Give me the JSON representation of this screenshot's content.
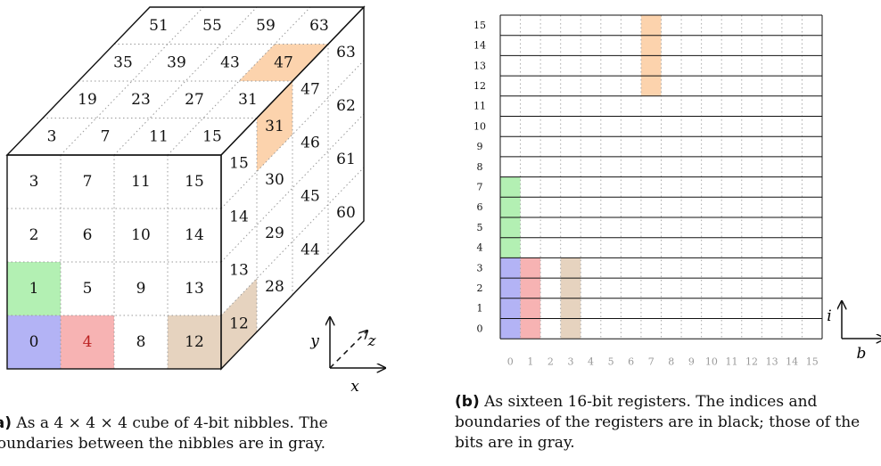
{
  "cube": {
    "front_labels": [
      [
        "3",
        "7",
        "11",
        "15"
      ],
      [
        "2",
        "6",
        "10",
        "14"
      ],
      [
        "1",
        "5",
        "9",
        "13"
      ],
      [
        "0",
        "4",
        "8",
        "12"
      ]
    ],
    "top_rows": [
      [
        "51",
        "55",
        "59",
        "63"
      ],
      [
        "35",
        "39",
        "43",
        "47"
      ],
      [
        "19",
        "23",
        "27",
        "31"
      ],
      [
        "3",
        "7",
        "11",
        "15"
      ]
    ],
    "right_cols": [
      [
        "15",
        "14",
        "13",
        "12"
      ],
      [
        "31",
        "30",
        "29",
        "28"
      ],
      [
        "47",
        "46",
        "45",
        "44"
      ],
      [
        "63",
        "62",
        "61",
        "60"
      ]
    ],
    "colors": {
      "blue": "#b3b3f5",
      "green": "#b3f0b3",
      "red": "#f7b3b3",
      "tan": "#e6d3bf",
      "orange": "#fcd3ad"
    },
    "axes": {
      "x": "x",
      "y": "y",
      "z": "z"
    },
    "caption_left": "(a)",
    "caption": "As a 4 × 4 × 4 cube of 4-bit nibbles. The boundaries between the nibbles are in gray."
  },
  "registers": {
    "row_labels": [
      "0",
      "1",
      "2",
      "3",
      "4",
      "5",
      "6",
      "7",
      "8",
      "9",
      "10",
      "11",
      "12",
      "13",
      "14",
      "15"
    ],
    "col_labels": [
      "0",
      "1",
      "2",
      "3",
      "4",
      "5",
      "6",
      "7",
      "8",
      "9",
      "10",
      "11",
      "12",
      "13",
      "14",
      "15"
    ],
    "axes": {
      "i": "i",
      "b": "b"
    },
    "caption_label": "(b)",
    "caption": "As sixteen 16-bit registers. The indices and boundaries of the registers are in black; those of the bits are in gray."
  }
}
